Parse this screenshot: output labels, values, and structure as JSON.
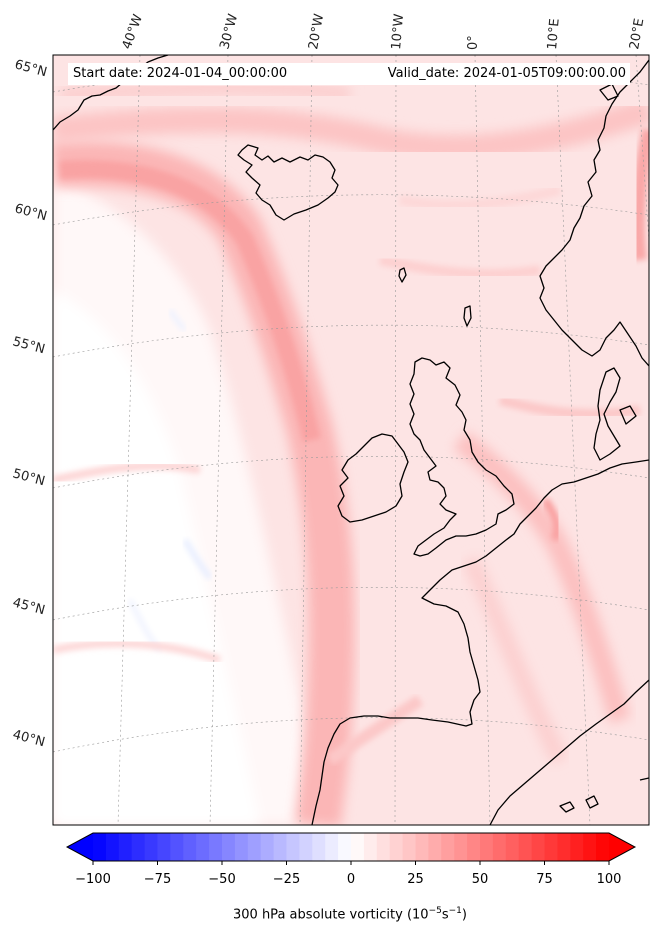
{
  "map": {
    "start_date": "Start date: 2024-01-04_00:00:00",
    "valid_date": "Valid_date: 2024-01-05T09:00:00.00",
    "lon_labels": [
      "40°W",
      "30°W",
      "20°W",
      "10°W",
      "0°",
      "10°E",
      "20°E"
    ],
    "lat_labels": [
      "65°N",
      "60°N",
      "55°N",
      "50°N",
      "45°N",
      "40°N"
    ],
    "field": "300 hPa absolute vorticity",
    "colormap": "bwr"
  },
  "colorbar": {
    "label": "300 hPa absolute vorticity (10",
    "label_sup1": "−5",
    "label_mid": "s",
    "label_sup2": "−1",
    "label_end": ")",
    "ticks": [
      "−100",
      "−75",
      "−50",
      "−25",
      "0",
      "25",
      "50",
      "75",
      "100"
    ],
    "min": -100,
    "max": 100,
    "levels": 40,
    "extend": "both"
  }
}
